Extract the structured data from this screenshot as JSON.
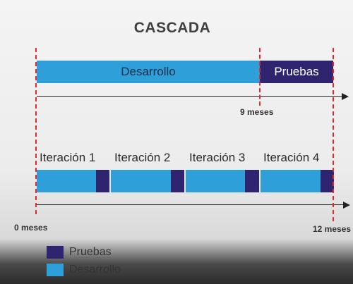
{
  "title": "CASCADA",
  "waterfall": {
    "dev_label": "Desarrollo",
    "test_label": "Pruebas"
  },
  "timeline": {
    "start_label": "0 meses",
    "mid_label": "9 meses",
    "end_label": "12 meses"
  },
  "iterations": [
    {
      "label": "Iteración 1"
    },
    {
      "label": "Iteración 2"
    },
    {
      "label": "Iteración 3"
    },
    {
      "label": "Iteración 4"
    }
  ],
  "legend": {
    "items": [
      {
        "label": "Pruebas",
        "color": "#2e2470"
      },
      {
        "label": "Desarrollo",
        "color": "#2f9fd9"
      }
    ]
  },
  "colors": {
    "development": "#2f9fd9",
    "testing": "#2e2470",
    "milestone_line": "#e52a2a"
  }
}
